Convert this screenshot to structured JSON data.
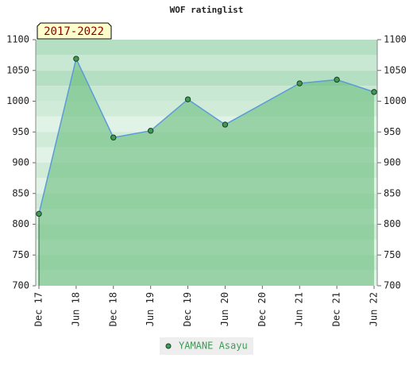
{
  "chart_data": {
    "type": "line",
    "title": "WOF ratinglist",
    "annotation": "2017-2022",
    "xticks": [
      "Dec 17",
      "Jun 18",
      "Dec 18",
      "Jun 19",
      "Dec 19",
      "Jun 20",
      "Dec 20",
      "Jun 21",
      "Dec 21",
      "Jun 22"
    ],
    "series": [
      {
        "name": "YAMANE Asayu",
        "color": "#3f9a55",
        "x": [
          "Dec 17",
          "Jun 18",
          "Dec 18",
          "Jun 19",
          "Dec 19",
          "Jun 20",
          "Jun 21",
          "Dec 21",
          "Jun 22"
        ],
        "values": [
          817,
          1069,
          941,
          952,
          1003,
          962,
          1029,
          1035,
          1015
        ]
      }
    ],
    "ylim": [
      700,
      1100
    ],
    "yticks": [
      700,
      750,
      800,
      850,
      900,
      950,
      1000,
      1050,
      1100
    ],
    "y2lim": [
      700,
      1100
    ],
    "y2ticks": [
      700,
      750,
      800,
      850,
      900,
      950,
      1000,
      1050,
      1100
    ],
    "grid": true
  }
}
